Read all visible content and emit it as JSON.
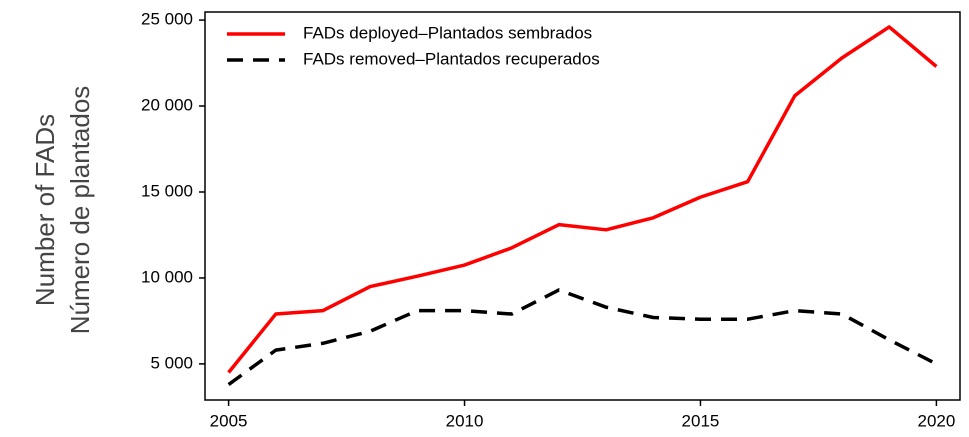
{
  "chart_data": {
    "type": "line",
    "y_label": [
      "Number of FADs",
      "Número de plantados"
    ],
    "x": [
      2005,
      2006,
      2007,
      2008,
      2009,
      2010,
      2011,
      2012,
      2013,
      2014,
      2015,
      2016,
      2017,
      2018,
      2019,
      2020
    ],
    "series": [
      {
        "name": "FADs deployed–Plantados sembrados",
        "color": "#ff0000",
        "dash": "solid",
        "values": [
          4500,
          7900,
          8100,
          9500,
          10100,
          10750,
          11750,
          13100,
          12800,
          13500,
          14700,
          15600,
          20600,
          22800,
          24600,
          22300
        ]
      },
      {
        "name": "FADs removed–Plantados recuperados",
        "color": "#000000",
        "dash": "dashed",
        "values": [
          3800,
          5800,
          6200,
          6900,
          8100,
          8100,
          7900,
          9300,
          8300,
          7700,
          7600,
          7600,
          8100,
          7900,
          6400,
          5000
        ]
      }
    ],
    "xlim": [
      2004.5,
      2020.5
    ],
    "xticks": [
      2005,
      2010,
      2015,
      2020
    ],
    "ylim": [
      2900,
      25470
    ],
    "yticks": [
      {
        "value": 5000,
        "label": "5 000"
      },
      {
        "value": 10000,
        "label": "10 000"
      },
      {
        "value": 15000,
        "label": "15 000"
      },
      {
        "value": 20000,
        "label": "20 000"
      },
      {
        "value": 25000,
        "label": "25 000"
      }
    ],
    "legend": "top-left",
    "grid": false
  }
}
